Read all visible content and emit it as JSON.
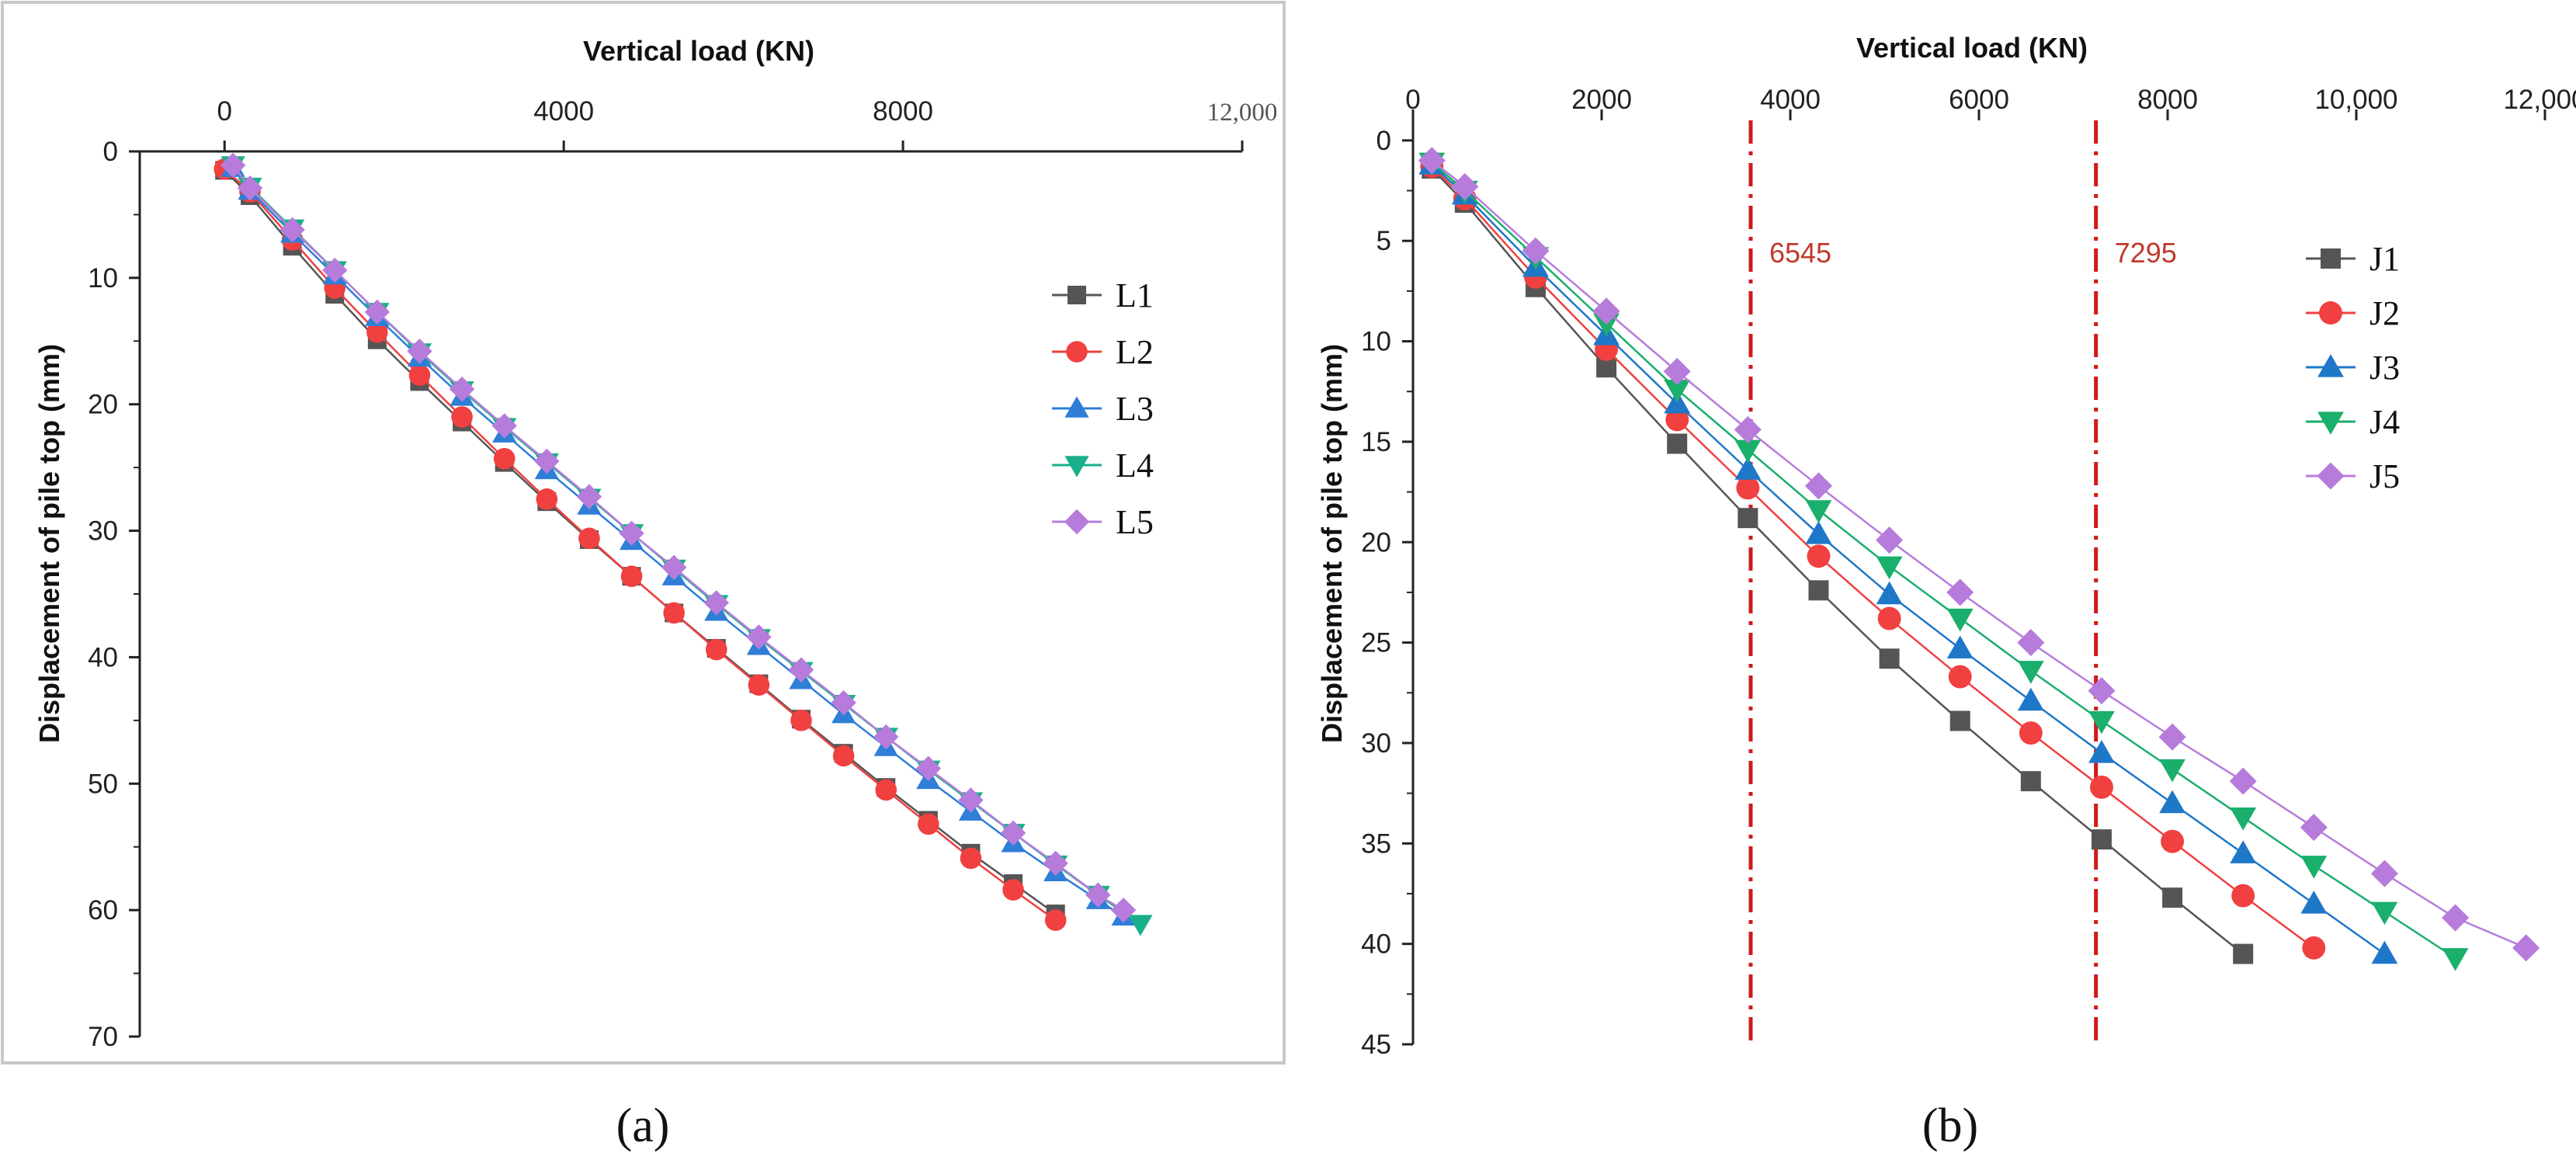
{
  "chart_data": [
    {
      "type": "line",
      "panel_label": "(a)",
      "title": "",
      "xlabel": "Vertical load (KN)",
      "ylabel": "Displacement of pile top (mm)",
      "x_axis_position": "top",
      "y_inverted": true,
      "xlim": [
        -1000,
        12000
      ],
      "ylim": [
        0,
        70
      ],
      "x_tick_values": [
        0,
        4000,
        8000,
        12000
      ],
      "x_tick_labels": [
        "0",
        "4000",
        "8000",
        "12,000"
      ],
      "y_tick_values": [
        0,
        10,
        20,
        30,
        40,
        50,
        60,
        70
      ],
      "y_tick_labels": [
        "0",
        "10",
        "20",
        "30",
        "40",
        "50",
        "60",
        "70"
      ],
      "legend_placement": "top-right",
      "series": [
        {
          "name": "L1",
          "color": "#555555",
          "marker": "square",
          "x": [
            0,
            300,
            800,
            1300,
            1800,
            2300,
            2800,
            3300,
            3800,
            4300,
            4800,
            5300,
            5800,
            6300,
            6800,
            7300,
            7800,
            8300,
            8800,
            9300,
            9800
          ],
          "y": [
            1.5,
            3.5,
            7.5,
            11.3,
            14.9,
            18.2,
            21.4,
            24.6,
            27.7,
            30.7,
            33.6,
            36.5,
            39.3,
            42.1,
            44.9,
            47.6,
            50.3,
            52.9,
            55.5,
            57.9,
            60.3
          ]
        },
        {
          "name": "L2",
          "color": "#f04040",
          "marker": "circle",
          "x": [
            0,
            300,
            800,
            1300,
            1800,
            2300,
            2800,
            3300,
            3800,
            4300,
            4800,
            5300,
            5800,
            6300,
            6800,
            7300,
            7800,
            8300,
            8800,
            9300,
            9800
          ],
          "y": [
            1.4,
            3.2,
            7.0,
            10.8,
            14.3,
            17.7,
            21.0,
            24.3,
            27.5,
            30.6,
            33.6,
            36.5,
            39.4,
            42.2,
            45.0,
            47.8,
            50.5,
            53.2,
            55.9,
            58.4,
            60.8
          ]
        },
        {
          "name": "L3",
          "color": "#2f7ed8",
          "marker": "triangle-up",
          "x": [
            100,
            300,
            800,
            1300,
            1800,
            2300,
            2800,
            3300,
            3800,
            4300,
            4800,
            5300,
            5800,
            6300,
            6800,
            7300,
            7800,
            8300,
            8800,
            9300,
            9800,
            10300,
            10600
          ],
          "y": [
            1.3,
            3.1,
            6.5,
            9.8,
            13.1,
            16.3,
            19.4,
            22.3,
            25.2,
            28.0,
            30.8,
            33.6,
            36.4,
            39.1,
            41.8,
            44.5,
            47.1,
            49.7,
            52.2,
            54.7,
            57.0,
            59.2,
            60.5
          ]
        },
        {
          "name": "L4",
          "color": "#1aaf8b",
          "marker": "triangle-down",
          "x": [
            100,
            300,
            800,
            1300,
            1800,
            2300,
            2800,
            3300,
            3800,
            4300,
            4800,
            5300,
            5800,
            6300,
            6800,
            7300,
            7800,
            8300,
            8800,
            9300,
            9800,
            10300,
            10800
          ],
          "y": [
            1.1,
            2.8,
            6.1,
            9.4,
            12.7,
            15.9,
            18.9,
            21.8,
            24.6,
            27.4,
            30.2,
            33.0,
            35.8,
            38.5,
            41.1,
            43.7,
            46.3,
            48.9,
            51.4,
            53.9,
            56.4,
            58.8,
            61.1
          ]
        },
        {
          "name": "L5",
          "color": "#b77cdb",
          "marker": "diamond",
          "x": [
            100,
            300,
            800,
            1300,
            1800,
            2300,
            2800,
            3300,
            3800,
            4300,
            4800,
            5300,
            5800,
            6300,
            6800,
            7300,
            7800,
            8300,
            8800,
            9300,
            9800,
            10300,
            10600
          ],
          "y": [
            1.1,
            2.9,
            6.2,
            9.4,
            12.7,
            15.8,
            18.8,
            21.7,
            24.5,
            27.3,
            30.2,
            32.9,
            35.7,
            38.4,
            41.0,
            43.6,
            46.3,
            48.8,
            51.3,
            53.9,
            56.3,
            58.8,
            60.0
          ]
        }
      ]
    },
    {
      "type": "line",
      "panel_label": "(b)",
      "title": "",
      "xlabel": "Vertical load (KN)",
      "ylabel": "Displacement of pile top  (mm)",
      "x_axis_position": "top",
      "y_inverted": true,
      "xlim": [
        0,
        12000
      ],
      "ylim": [
        -1,
        45
      ],
      "x_tick_values": [
        0,
        2000,
        4000,
        6000,
        8000,
        10000,
        12000
      ],
      "x_tick_labels": [
        "0",
        "2000",
        "4000",
        "6000",
        "8000",
        "10,000",
        "12,000"
      ],
      "y_tick_values": [
        0,
        5,
        10,
        15,
        20,
        25,
        30,
        35,
        40,
        45
      ],
      "y_tick_labels": [
        "0",
        "5",
        "10",
        "15",
        "20",
        "25",
        "30",
        "35",
        "40",
        "45"
      ],
      "legend_placement": "top-right",
      "reference_lines": [
        {
          "x": 3580,
          "label": "6545",
          "color": "#d11a1a"
        },
        {
          "x": 7240,
          "label": "7295",
          "color": "#d11a1a"
        }
      ],
      "series": [
        {
          "name": "J1",
          "color": "#555555",
          "marker": "square",
          "x": [
            200,
            550,
            1300,
            2050,
            2800,
            3550,
            4300,
            5050,
            5800,
            6550,
            7300,
            8050,
            8800
          ],
          "y": [
            1.4,
            3.1,
            7.3,
            11.3,
            15.1,
            18.8,
            22.4,
            25.8,
            28.9,
            31.9,
            34.8,
            37.7,
            40.5
          ]
        },
        {
          "name": "J2",
          "color": "#f04040",
          "marker": "circle",
          "x": [
            200,
            550,
            1300,
            2050,
            2800,
            3550,
            4300,
            5050,
            5800,
            6550,
            7300,
            8050,
            8800,
            9550
          ],
          "y": [
            1.3,
            2.9,
            6.8,
            10.4,
            13.9,
            17.3,
            20.7,
            23.8,
            26.7,
            29.5,
            32.2,
            34.9,
            37.6,
            40.2
          ]
        },
        {
          "name": "J3",
          "color": "#1f77c8",
          "marker": "triangle-up",
          "x": [
            200,
            550,
            1300,
            2050,
            2800,
            3550,
            4300,
            5050,
            5800,
            6550,
            7300,
            8050,
            8800,
            9550,
            10300
          ],
          "y": [
            1.2,
            2.7,
            6.3,
            9.7,
            13.1,
            16.4,
            19.6,
            22.6,
            25.3,
            27.9,
            30.5,
            33.0,
            35.5,
            38.0,
            40.5
          ]
        },
        {
          "name": "J4",
          "color": "#1aaf6b",
          "marker": "triangle-down",
          "x": [
            200,
            550,
            1300,
            2050,
            2800,
            3550,
            4300,
            5050,
            5800,
            6550,
            7300,
            8050,
            8800,
            9550,
            10300,
            11050
          ],
          "y": [
            1.1,
            2.5,
            5.8,
            9.1,
            12.4,
            15.4,
            18.4,
            21.2,
            23.8,
            26.4,
            28.9,
            31.3,
            33.7,
            36.1,
            38.4,
            40.7
          ]
        },
        {
          "name": "J5",
          "color": "#b77cdb",
          "marker": "diamond",
          "x": [
            200,
            550,
            1300,
            2050,
            2800,
            3550,
            4300,
            5050,
            5800,
            6550,
            7300,
            8050,
            8800,
            9550,
            10300,
            11050,
            11800
          ],
          "y": [
            1.0,
            2.3,
            5.5,
            8.5,
            11.5,
            14.4,
            17.2,
            19.9,
            22.5,
            25.0,
            27.4,
            29.7,
            31.9,
            34.2,
            36.5,
            38.7,
            40.2
          ]
        }
      ]
    }
  ]
}
